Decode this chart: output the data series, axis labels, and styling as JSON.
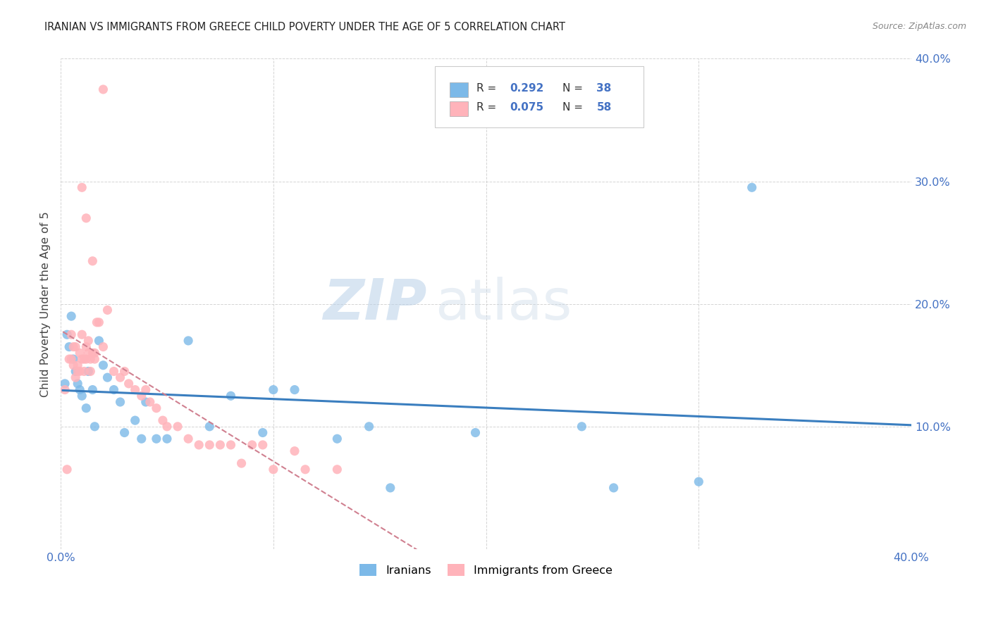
{
  "title": "IRANIAN VS IMMIGRANTS FROM GREECE CHILD POVERTY UNDER THE AGE OF 5 CORRELATION CHART",
  "source": "Source: ZipAtlas.com",
  "ylabel": "Child Poverty Under the Age of 5",
  "xlim": [
    0.0,
    0.4
  ],
  "ylim": [
    0.0,
    0.4
  ],
  "iranians_color": "#7cb9e8",
  "greece_color": "#ffb3ba",
  "trendline_iran_color": "#3a7ebf",
  "trendline_greece_color": "#d08090",
  "watermark_zip": "ZIP",
  "watermark_atlas": "atlas",
  "legend_R_iran": "0.292",
  "legend_N_iran": "38",
  "legend_R_greece": "0.075",
  "legend_N_greece": "58",
  "iranians_x": [
    0.002,
    0.003,
    0.004,
    0.005,
    0.006,
    0.007,
    0.008,
    0.009,
    0.01,
    0.012,
    0.013,
    0.015,
    0.016,
    0.018,
    0.02,
    0.022,
    0.025,
    0.028,
    0.03,
    0.035,
    0.038,
    0.04,
    0.045,
    0.05,
    0.06,
    0.07,
    0.08,
    0.095,
    0.1,
    0.11,
    0.13,
    0.145,
    0.155,
    0.195,
    0.245,
    0.26,
    0.3,
    0.325
  ],
  "iranians_y": [
    0.135,
    0.175,
    0.165,
    0.19,
    0.155,
    0.145,
    0.135,
    0.13,
    0.125,
    0.115,
    0.145,
    0.13,
    0.1,
    0.17,
    0.15,
    0.14,
    0.13,
    0.12,
    0.095,
    0.105,
    0.09,
    0.12,
    0.09,
    0.09,
    0.17,
    0.1,
    0.125,
    0.095,
    0.13,
    0.13,
    0.09,
    0.1,
    0.05,
    0.095,
    0.1,
    0.05,
    0.055,
    0.295
  ],
  "greece_x": [
    0.002,
    0.003,
    0.004,
    0.005,
    0.005,
    0.006,
    0.006,
    0.007,
    0.007,
    0.008,
    0.008,
    0.009,
    0.009,
    0.01,
    0.01,
    0.011,
    0.011,
    0.012,
    0.012,
    0.013,
    0.013,
    0.014,
    0.014,
    0.015,
    0.016,
    0.016,
    0.017,
    0.018,
    0.02,
    0.022,
    0.025,
    0.028,
    0.03,
    0.032,
    0.035,
    0.038,
    0.04,
    0.042,
    0.045,
    0.048,
    0.05,
    0.055,
    0.06,
    0.065,
    0.07,
    0.075,
    0.08,
    0.085,
    0.09,
    0.095,
    0.1,
    0.11,
    0.115,
    0.13,
    0.01,
    0.012,
    0.015,
    0.02
  ],
  "greece_y": [
    0.13,
    0.065,
    0.155,
    0.175,
    0.155,
    0.15,
    0.165,
    0.14,
    0.165,
    0.15,
    0.145,
    0.16,
    0.145,
    0.155,
    0.175,
    0.155,
    0.145,
    0.165,
    0.155,
    0.16,
    0.17,
    0.145,
    0.155,
    0.16,
    0.155,
    0.16,
    0.185,
    0.185,
    0.165,
    0.195,
    0.145,
    0.14,
    0.145,
    0.135,
    0.13,
    0.125,
    0.13,
    0.12,
    0.115,
    0.105,
    0.1,
    0.1,
    0.09,
    0.085,
    0.085,
    0.085,
    0.085,
    0.07,
    0.085,
    0.085,
    0.065,
    0.08,
    0.065,
    0.065,
    0.295,
    0.27,
    0.235,
    0.375
  ],
  "background_color": "#ffffff",
  "grid_color": "#d0d0d0"
}
